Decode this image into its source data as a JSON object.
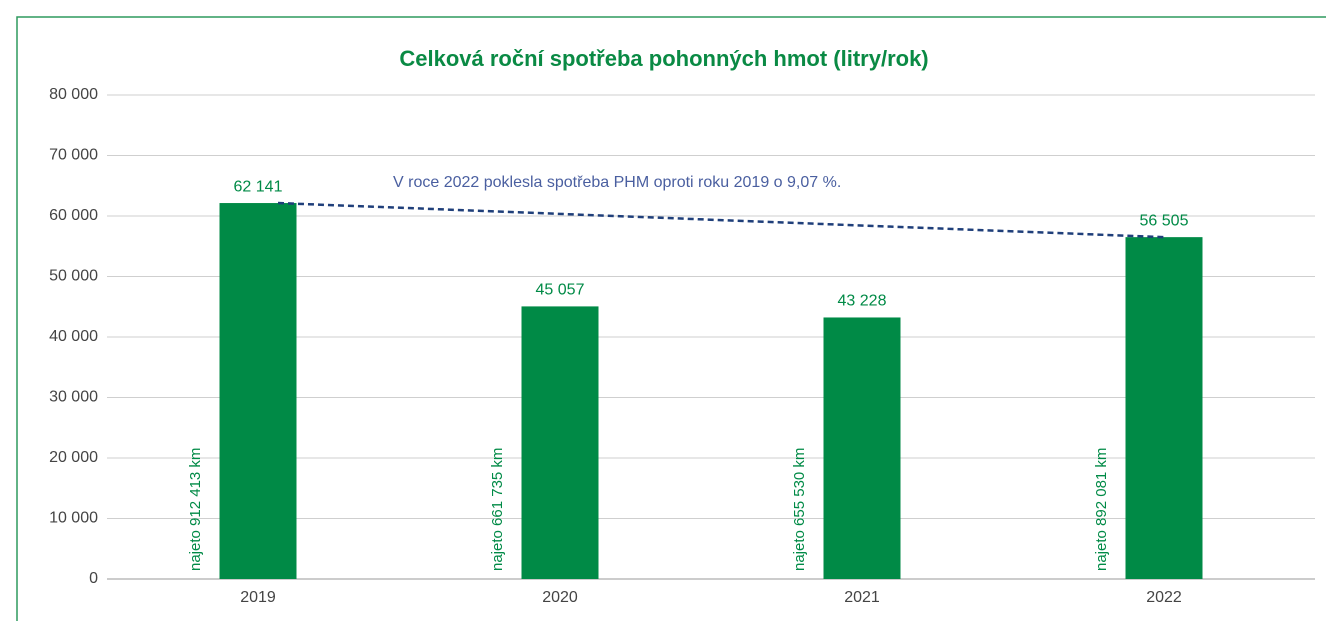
{
  "chart_data": {
    "type": "bar",
    "title": "Celková roční spotřeba pohonných hmot (litry/rok)",
    "categories": [
      "2019",
      "2020",
      "2021",
      "2022"
    ],
    "values": [
      62141,
      45057,
      43228,
      56505
    ],
    "value_labels": [
      "62 141",
      "45 057",
      "43 228",
      "56 505"
    ],
    "bar_annotations": [
      "najeto 912 413 km",
      "najeto 661 735 km",
      "najeto 655 530 km",
      "najeto 892 081 km"
    ],
    "trend_annotation": "V roce 2022 poklesla spotřeba PHM oproti roku 2019 o 9,07 %.",
    "color": "#008a46",
    "ylim": [
      0,
      80000
    ],
    "yticks": [
      0,
      {
        "value": 10000,
        "label": "10 000"
      },
      {
        "value": 20000,
        "label": "20 000"
      },
      {
        "value": 30000,
        "label": "30 000"
      },
      {
        "value": 40000,
        "label": "40 000"
      },
      {
        "value": 50000,
        "label": "50 000"
      },
      {
        "value": 60000,
        "label": "60 000"
      },
      {
        "value": 70000,
        "label": "70 000"
      },
      {
        "value": 80000,
        "label": "80 000"
      }
    ],
    "grid": true
  }
}
